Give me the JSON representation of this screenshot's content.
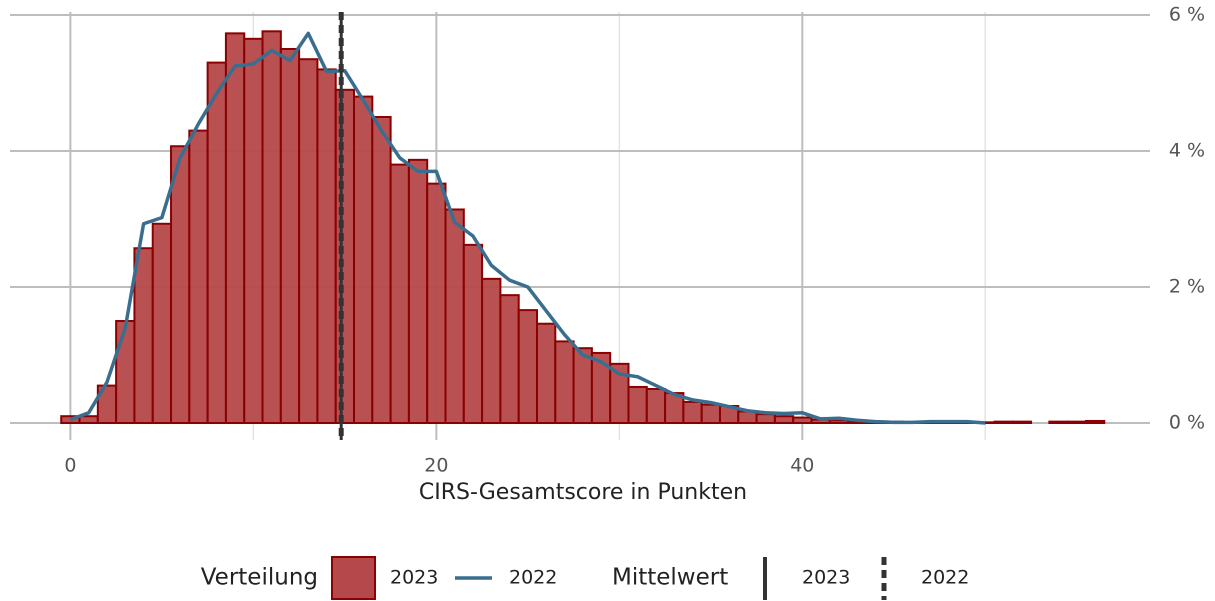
{
  "chart_data": {
    "type": "histogram",
    "xlabel": "CIRS-Gesamtscore in Punkten",
    "xlim": [
      -3.3,
      59
    ],
    "ylim": [
      -0.25,
      6
    ],
    "xticks": [
      0,
      20,
      40
    ],
    "xminor_ticks": [
      10,
      30,
      50
    ],
    "yticks": [
      {
        "value": 0,
        "label": "0 %"
      },
      {
        "value": 2,
        "label": "2 %"
      },
      {
        "value": 4,
        "label": "4 %"
      },
      {
        "value": 6,
        "label": "6 %"
      }
    ],
    "grid": true,
    "histogram": {
      "name": "2023",
      "color": "#b5484a",
      "edge_color": "#8b0000",
      "bins": [
        -0.5,
        0.5,
        1.5,
        2.5,
        3.5,
        4.5,
        5.5,
        6.5,
        7.5,
        8.5,
        9.5,
        10.5,
        11.5,
        12.5,
        13.5,
        14.5,
        15.5,
        16.5,
        17.5,
        18.5,
        19.5,
        20.5,
        21.5,
        22.5,
        23.5,
        24.5,
        25.5,
        26.5,
        27.5,
        28.5,
        29.5,
        30.5,
        31.5,
        32.5,
        33.5,
        34.5,
        35.5,
        36.5,
        37.5,
        38.5,
        39.5,
        40.5,
        41.5,
        42.5,
        43.5,
        44.5,
        45.5,
        46.5,
        47.5,
        48.5,
        49.5,
        50.5,
        51.5,
        52.5,
        53.5,
        54.5,
        55.5,
        56.5
      ],
      "counts": [
        0.1,
        0.1,
        0.55,
        1.5,
        2.57,
        2.93,
        4.07,
        4.3,
        5.3,
        5.73,
        5.65,
        5.76,
        5.5,
        5.35,
        5.2,
        4.9,
        4.8,
        4.5,
        3.8,
        3.87,
        3.52,
        3.14,
        2.62,
        2.12,
        1.88,
        1.66,
        1.46,
        1.2,
        1.1,
        1.03,
        0.87,
        0.53,
        0.5,
        0.44,
        0.31,
        0.27,
        0.25,
        0.17,
        0.13,
        0.1,
        0.08,
        0.05,
        0.04,
        0.03,
        0.02,
        0.02,
        0.01,
        0.01,
        0.02,
        0.01,
        0.01,
        0.02,
        0.02,
        0,
        0.02,
        0.02,
        0.03
      ]
    },
    "series": [
      {
        "name": "2022",
        "color": "#3a6e8f",
        "x": [
          0,
          1,
          2,
          3,
          4,
          5,
          6,
          7,
          8,
          9,
          10,
          11,
          12,
          13,
          14,
          15,
          16,
          17,
          18,
          19,
          20,
          21,
          22,
          23,
          24,
          25,
          26,
          27,
          28,
          29,
          30,
          31,
          32,
          33,
          34,
          35,
          36,
          37,
          38,
          39,
          40,
          41,
          42,
          43,
          44,
          45,
          46,
          47,
          48,
          49,
          50
        ],
        "values": [
          0.05,
          0.15,
          0.6,
          1.4,
          2.93,
          3.02,
          3.9,
          4.4,
          4.85,
          5.25,
          5.28,
          5.48,
          5.33,
          5.73,
          5.17,
          5.18,
          4.75,
          4.3,
          3.9,
          3.7,
          3.7,
          2.95,
          2.75,
          2.32,
          2.1,
          2.0,
          1.65,
          1.3,
          1.0,
          0.9,
          0.72,
          0.68,
          0.55,
          0.42,
          0.34,
          0.3,
          0.24,
          0.18,
          0.15,
          0.14,
          0.15,
          0.06,
          0.07,
          0.04,
          0.02,
          0.01,
          0.01,
          0.02,
          0.02,
          0.02,
          0.0
        ]
      }
    ],
    "distribution_legend_title": "Verteilung",
    "mean_lines": {
      "title": "Mittelwert",
      "color": "#333333",
      "series": [
        {
          "name": "2023",
          "value": 14.8,
          "dashed": false
        },
        {
          "name": "2022",
          "value": 14.8,
          "dashed": true
        }
      ]
    }
  }
}
